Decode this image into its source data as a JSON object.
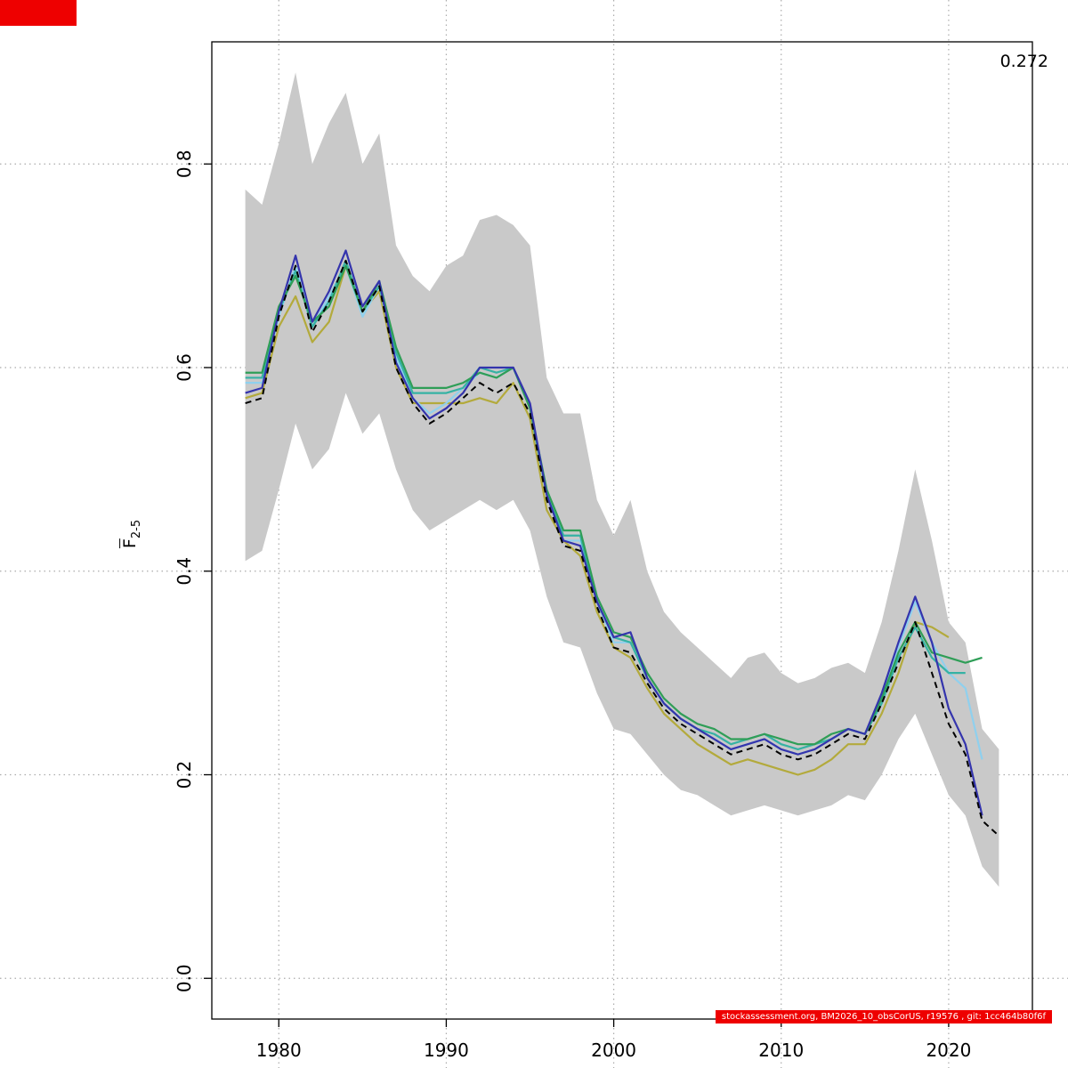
{
  "figure": {
    "annotation": "0.272",
    "accent_red": "#ee0000",
    "footer_text": "stockassessment.org, BM2026_10_obsCorUS, r19576 , git: 1cc464b80f6f"
  },
  "chart_data": {
    "type": "line",
    "title": "",
    "xlabel": "",
    "ylabel_main": "F",
    "ylabel_sub": "2-5",
    "annotation": "0.272",
    "xlim": [
      1976,
      2025
    ],
    "ylim": [
      -0.04,
      0.92
    ],
    "xticks": [
      1980,
      1990,
      2000,
      2010,
      2020
    ],
    "ytick_labels": [
      "0.0",
      "0.2",
      "0.4",
      "0.6",
      "0.8"
    ],
    "grid": "dotted",
    "grid_color": "#ababab",
    "band": {
      "name": "confidence-band",
      "color": "#c9c9c9",
      "start_year": 1978,
      "lower": [
        0.41,
        0.42,
        0.48,
        0.545,
        0.5,
        0.52,
        0.575,
        0.535,
        0.555,
        0.5,
        0.46,
        0.44,
        0.45,
        0.46,
        0.47,
        0.46,
        0.47,
        0.44,
        0.375,
        0.33,
        0.325,
        0.28,
        0.245,
        0.24,
        0.22,
        0.2,
        0.185,
        0.18,
        0.17,
        0.16,
        0.165,
        0.17,
        0.165,
        0.16,
        0.165,
        0.17,
        0.18,
        0.175,
        0.2,
        0.235,
        0.26,
        0.22,
        0.18,
        0.16,
        0.11,
        0.09
      ],
      "upper": [
        0.775,
        0.76,
        0.82,
        0.89,
        0.8,
        0.84,
        0.87,
        0.8,
        0.83,
        0.72,
        0.69,
        0.675,
        0.7,
        0.71,
        0.745,
        0.75,
        0.74,
        0.72,
        0.59,
        0.555,
        0.555,
        0.47,
        0.435,
        0.47,
        0.4,
        0.36,
        0.34,
        0.325,
        0.31,
        0.295,
        0.315,
        0.32,
        0.3,
        0.29,
        0.295,
        0.305,
        0.31,
        0.3,
        0.35,
        0.42,
        0.5,
        0.43,
        0.35,
        0.33,
        0.245,
        0.225
      ]
    },
    "series": [
      {
        "name": "retro-olive",
        "color": "#b3aa3c",
        "dash": "",
        "width": 2.2,
        "start_year": 1978,
        "values": [
          0.57,
          0.575,
          0.64,
          0.67,
          0.625,
          0.645,
          0.7,
          0.655,
          0.675,
          0.6,
          0.565,
          0.565,
          0.565,
          0.565,
          0.57,
          0.565,
          0.585,
          0.55,
          0.46,
          0.43,
          0.415,
          0.36,
          0.325,
          0.315,
          0.285,
          0.26,
          0.245,
          0.23,
          0.22,
          0.21,
          0.215,
          0.21,
          0.205,
          0.2,
          0.205,
          0.215,
          0.23,
          0.23,
          0.26,
          0.3,
          0.35,
          0.345,
          0.335
        ]
      },
      {
        "name": "retro-skyblue",
        "color": "#8fd0ee",
        "dash": "",
        "width": 2.2,
        "start_year": 1978,
        "values": [
          0.585,
          0.585,
          0.65,
          0.7,
          0.64,
          0.67,
          0.7,
          0.65,
          0.68,
          0.61,
          0.57,
          0.555,
          0.565,
          0.58,
          0.595,
          0.59,
          0.6,
          0.56,
          0.475,
          0.43,
          0.43,
          0.37,
          0.33,
          0.33,
          0.295,
          0.27,
          0.255,
          0.245,
          0.235,
          0.225,
          0.23,
          0.235,
          0.225,
          0.22,
          0.225,
          0.235,
          0.245,
          0.24,
          0.275,
          0.325,
          0.37,
          0.33,
          0.3,
          0.285,
          0.215
        ]
      },
      {
        "name": "retro-teal",
        "color": "#35b2a4",
        "dash": "",
        "width": 2.2,
        "start_year": 1978,
        "values": [
          0.59,
          0.59,
          0.655,
          0.695,
          0.64,
          0.665,
          0.705,
          0.655,
          0.68,
          0.615,
          0.575,
          0.575,
          0.575,
          0.58,
          0.6,
          0.595,
          0.6,
          0.56,
          0.475,
          0.435,
          0.435,
          0.37,
          0.335,
          0.33,
          0.295,
          0.27,
          0.255,
          0.245,
          0.24,
          0.23,
          0.235,
          0.24,
          0.23,
          0.225,
          0.23,
          0.235,
          0.245,
          0.24,
          0.27,
          0.315,
          0.345,
          0.315,
          0.3,
          0.3
        ]
      },
      {
        "name": "retro-green",
        "color": "#2f9e57",
        "dash": "",
        "width": 2.2,
        "start_year": 1978,
        "values": [
          0.595,
          0.595,
          0.66,
          0.69,
          0.645,
          0.66,
          0.7,
          0.655,
          0.685,
          0.62,
          0.58,
          0.58,
          0.58,
          0.585,
          0.595,
          0.59,
          0.6,
          0.56,
          0.48,
          0.44,
          0.44,
          0.375,
          0.34,
          0.335,
          0.3,
          0.275,
          0.26,
          0.25,
          0.245,
          0.235,
          0.235,
          0.24,
          0.235,
          0.23,
          0.23,
          0.24,
          0.245,
          0.24,
          0.275,
          0.32,
          0.35,
          0.32,
          0.315,
          0.31,
          0.315
        ]
      },
      {
        "name": "retro-navy",
        "color": "#3434ad",
        "dash": "",
        "width": 2.2,
        "start_year": 1978,
        "values": [
          0.575,
          0.58,
          0.655,
          0.71,
          0.645,
          0.675,
          0.715,
          0.66,
          0.685,
          0.605,
          0.57,
          0.55,
          0.56,
          0.575,
          0.6,
          0.6,
          0.6,
          0.565,
          0.475,
          0.43,
          0.425,
          0.37,
          0.335,
          0.34,
          0.295,
          0.27,
          0.255,
          0.245,
          0.235,
          0.225,
          0.23,
          0.235,
          0.225,
          0.22,
          0.225,
          0.235,
          0.245,
          0.24,
          0.28,
          0.33,
          0.375,
          0.33,
          0.265,
          0.23,
          0.16
        ]
      },
      {
        "name": "base-estimate",
        "color": "#000000",
        "dash": "7,5",
        "width": 2,
        "start_year": 1978,
        "values": [
          0.565,
          0.57,
          0.65,
          0.7,
          0.635,
          0.665,
          0.705,
          0.655,
          0.68,
          0.6,
          0.565,
          0.545,
          0.555,
          0.57,
          0.585,
          0.575,
          0.585,
          0.555,
          0.47,
          0.425,
          0.42,
          0.365,
          0.325,
          0.32,
          0.29,
          0.265,
          0.25,
          0.24,
          0.23,
          0.22,
          0.225,
          0.23,
          0.22,
          0.215,
          0.22,
          0.23,
          0.24,
          0.235,
          0.27,
          0.31,
          0.35,
          0.3,
          0.25,
          0.22,
          0.155,
          0.14
        ]
      }
    ]
  }
}
